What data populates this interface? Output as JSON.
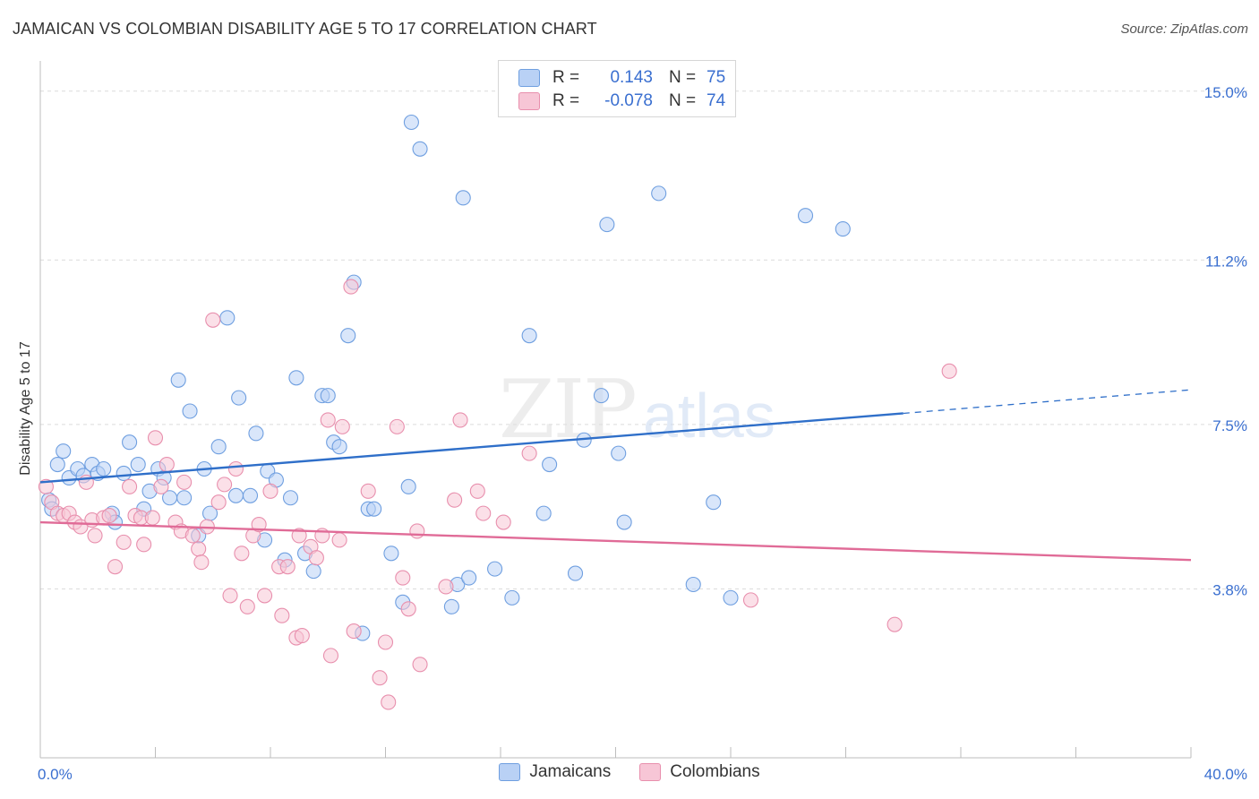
{
  "header": {
    "title": "JAMAICAN VS COLOMBIAN DISABILITY AGE 5 TO 17 CORRELATION CHART",
    "source": "Source: ZipAtlas.com"
  },
  "watermark": {
    "part1": "ZIP",
    "part2": "atlas"
  },
  "legend": {
    "rows": [
      {
        "r_label": "R =",
        "r_value": "0.143",
        "n_label": "N =",
        "n_value": "75",
        "fill": "#b9d1f5",
        "stroke": "#6f9fe0"
      },
      {
        "r_label": "R =",
        "r_value": "-0.078",
        "n_label": "N =",
        "n_value": "74",
        "fill": "#f7c6d6",
        "stroke": "#e88fad"
      }
    ]
  },
  "bottom_legend": {
    "items": [
      {
        "label": "Jamaicans",
        "fill": "#b9d1f5",
        "stroke": "#6f9fe0"
      },
      {
        "label": "Colombians",
        "fill": "#f7c6d6",
        "stroke": "#e88fad"
      }
    ]
  },
  "chart_data": {
    "type": "scatter",
    "title": "JAMAICAN VS COLOMBIAN DISABILITY AGE 5 TO 17 CORRELATION CHART",
    "xlabel": "",
    "ylabel": "Disability Age 5 to 17",
    "xlim": [
      0,
      40
    ],
    "ylim": [
      0,
      15.6
    ],
    "x_tick_labels": [
      {
        "value": 0,
        "label": "0.0%"
      },
      {
        "value": 40,
        "label": "40.0%"
      }
    ],
    "y_ticks": [
      {
        "value": 3.8,
        "label": "3.8%"
      },
      {
        "value": 7.5,
        "label": "7.5%"
      },
      {
        "value": 11.2,
        "label": "11.2%"
      },
      {
        "value": 15.0,
        "label": "15.0%"
      }
    ],
    "grid": "horizontal dashed",
    "legend_position": "top-center",
    "series": [
      {
        "name": "Jamaicans",
        "color": "#6f9fe0",
        "fill": "#b9d1f5",
        "line_color": "#2f6fc9",
        "trend": {
          "x_start": 0,
          "y_start": 6.2,
          "x_solid_end": 30,
          "y_solid_end": 7.75,
          "x_end": 40,
          "y_end": 8.28
        },
        "points": [
          [
            0.3,
            5.8
          ],
          [
            0.4,
            5.6
          ],
          [
            0.6,
            6.6
          ],
          [
            0.8,
            6.9
          ],
          [
            1.0,
            6.3
          ],
          [
            1.3,
            6.5
          ],
          [
            1.5,
            6.35
          ],
          [
            1.8,
            6.6
          ],
          [
            2.0,
            6.4
          ],
          [
            2.2,
            6.5
          ],
          [
            2.5,
            5.5
          ],
          [
            2.6,
            5.3
          ],
          [
            2.9,
            6.4
          ],
          [
            3.1,
            7.1
          ],
          [
            3.4,
            6.6
          ],
          [
            3.6,
            5.6
          ],
          [
            3.8,
            6.0
          ],
          [
            4.1,
            6.5
          ],
          [
            4.3,
            6.3
          ],
          [
            4.5,
            5.85
          ],
          [
            4.8,
            8.5
          ],
          [
            5.0,
            5.85
          ],
          [
            5.2,
            7.8
          ],
          [
            5.5,
            5.0
          ],
          [
            5.7,
            6.5
          ],
          [
            5.9,
            5.5
          ],
          [
            6.2,
            7.0
          ],
          [
            6.5,
            9.9
          ],
          [
            6.8,
            5.9
          ],
          [
            6.9,
            8.1
          ],
          [
            7.3,
            5.9
          ],
          [
            7.5,
            7.3
          ],
          [
            7.8,
            4.9
          ],
          [
            7.9,
            6.45
          ],
          [
            8.2,
            6.25
          ],
          [
            8.5,
            4.45
          ],
          [
            8.7,
            5.85
          ],
          [
            8.9,
            8.55
          ],
          [
            9.2,
            4.6
          ],
          [
            9.5,
            4.2
          ],
          [
            9.8,
            8.15
          ],
          [
            10.0,
            8.15
          ],
          [
            10.2,
            7.1
          ],
          [
            10.4,
            7.0
          ],
          [
            10.7,
            9.5
          ],
          [
            10.9,
            10.7
          ],
          [
            11.2,
            2.8
          ],
          [
            11.4,
            5.6
          ],
          [
            11.6,
            5.6
          ],
          [
            12.2,
            4.6
          ],
          [
            12.6,
            3.5
          ],
          [
            12.8,
            6.1
          ],
          [
            12.9,
            14.3
          ],
          [
            13.2,
            13.7
          ],
          [
            14.3,
            3.4
          ],
          [
            14.5,
            3.9
          ],
          [
            14.7,
            12.6
          ],
          [
            14.9,
            4.05
          ],
          [
            15.8,
            4.25
          ],
          [
            16.4,
            3.6
          ],
          [
            17.0,
            9.5
          ],
          [
            17.5,
            5.5
          ],
          [
            17.7,
            6.6
          ],
          [
            18.6,
            4.15
          ],
          [
            18.9,
            7.15
          ],
          [
            19.5,
            8.15
          ],
          [
            19.7,
            12.0
          ],
          [
            20.1,
            6.85
          ],
          [
            20.3,
            5.3
          ],
          [
            21.5,
            12.7
          ],
          [
            22.7,
            3.9
          ],
          [
            23.4,
            5.75
          ],
          [
            24.0,
            3.6
          ],
          [
            26.6,
            12.2
          ],
          [
            27.9,
            11.9
          ]
        ]
      },
      {
        "name": "Colombians",
        "color": "#e88fad",
        "fill": "#f7c6d6",
        "line_color": "#e06b97",
        "trend": {
          "x_start": 0,
          "y_start": 5.3,
          "x_end": 40,
          "y_end": 4.45
        },
        "points": [
          [
            0.2,
            6.1
          ],
          [
            0.4,
            5.75
          ],
          [
            0.6,
            5.5
          ],
          [
            0.8,
            5.45
          ],
          [
            1.0,
            5.5
          ],
          [
            1.2,
            5.3
          ],
          [
            1.4,
            5.2
          ],
          [
            1.6,
            6.2
          ],
          [
            1.8,
            5.35
          ],
          [
            1.9,
            5.0
          ],
          [
            2.2,
            5.4
          ],
          [
            2.4,
            5.45
          ],
          [
            2.6,
            4.3
          ],
          [
            2.9,
            4.85
          ],
          [
            3.1,
            6.1
          ],
          [
            3.3,
            5.45
          ],
          [
            3.5,
            5.4
          ],
          [
            3.6,
            4.8
          ],
          [
            3.9,
            5.4
          ],
          [
            4.0,
            7.2
          ],
          [
            4.2,
            6.1
          ],
          [
            4.4,
            6.6
          ],
          [
            4.7,
            5.3
          ],
          [
            4.9,
            5.1
          ],
          [
            5.0,
            6.2
          ],
          [
            5.3,
            5.0
          ],
          [
            5.5,
            4.7
          ],
          [
            5.6,
            4.4
          ],
          [
            5.8,
            5.2
          ],
          [
            6.0,
            9.85
          ],
          [
            6.2,
            5.75
          ],
          [
            6.4,
            6.15
          ],
          [
            6.6,
            3.65
          ],
          [
            6.8,
            6.5
          ],
          [
            7.0,
            4.6
          ],
          [
            7.2,
            3.4
          ],
          [
            7.4,
            5.0
          ],
          [
            7.6,
            5.25
          ],
          [
            7.8,
            3.65
          ],
          [
            8.0,
            6.0
          ],
          [
            8.3,
            4.3
          ],
          [
            8.4,
            3.2
          ],
          [
            8.6,
            4.3
          ],
          [
            8.9,
            2.7
          ],
          [
            9.1,
            2.75
          ],
          [
            9.4,
            4.75
          ],
          [
            9.6,
            4.5
          ],
          [
            9.8,
            5.0
          ],
          [
            10.0,
            7.6
          ],
          [
            10.1,
            2.3
          ],
          [
            10.4,
            4.9
          ],
          [
            10.5,
            7.45
          ],
          [
            10.8,
            10.6
          ],
          [
            10.9,
            2.85
          ],
          [
            11.4,
            6.0
          ],
          [
            11.8,
            1.8
          ],
          [
            12.0,
            2.6
          ],
          [
            12.1,
            1.25
          ],
          [
            12.4,
            7.45
          ],
          [
            12.6,
            4.05
          ],
          [
            12.8,
            3.35
          ],
          [
            13.1,
            5.1
          ],
          [
            13.2,
            2.1
          ],
          [
            14.1,
            3.85
          ],
          [
            14.4,
            5.8
          ],
          [
            14.6,
            7.6
          ],
          [
            15.2,
            6.0
          ],
          [
            15.4,
            5.5
          ],
          [
            16.1,
            5.3
          ],
          [
            17.0,
            6.85
          ],
          [
            24.7,
            3.55
          ],
          [
            29.7,
            3.0
          ],
          [
            31.6,
            8.7
          ],
          [
            9.0,
            5.0
          ]
        ]
      }
    ]
  }
}
